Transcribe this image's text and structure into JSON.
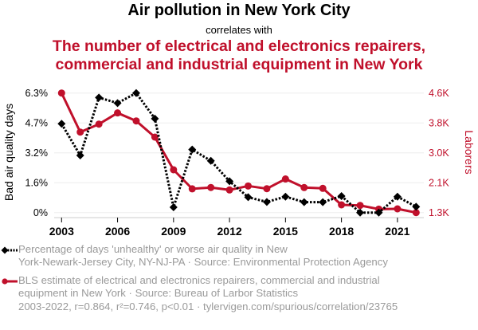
{
  "header": {
    "title": "Air pollution in New York City",
    "subtitle": "correlates with",
    "title2_line1": "The number of electrical and electronics repairers,",
    "title2_line2": "commercial and industrial equipment in New York"
  },
  "colors": {
    "series1": "#000000",
    "series2": "#c0102b",
    "muted_text": "#9a9a9a",
    "grid": "#eeeeee"
  },
  "legend": {
    "series1_line1": "Percentage of days 'unhealthy' or worse air quality in New",
    "series1_line2": "York-Newark-Jersey City, NY-NJ-PA · Source: Environmental Protection Agency",
    "series2_line1": "BLS estimate of electrical and electronics repairers, commercial and industrial",
    "series2_line2": "equipment in New York · Source: Bureau of Larbor Statistics"
  },
  "footer": "2003-2022, r=0.864, r²=0.746, p<0.01 · tylervigen.com/spurious/correlation/23765",
  "chart_data": {
    "type": "line",
    "title": "Air pollution in New York City",
    "x": [
      2003,
      2004,
      2005,
      2006,
      2007,
      2008,
      2009,
      2010,
      2011,
      2012,
      2013,
      2014,
      2015,
      2016,
      2017,
      2018,
      2019,
      2020,
      2021,
      2022
    ],
    "xticks": [
      "2003",
      "2006",
      "2009",
      "2012",
      "2015",
      "2018",
      "2021"
    ],
    "xtick_values": [
      2003,
      2006,
      2009,
      2012,
      2015,
      2018,
      2021
    ],
    "xlim": [
      2003,
      2022
    ],
    "grid": true,
    "series": [
      {
        "name": "Percentage of days 'unhealthy' or worse air quality in New York-Newark-Jersey City, NY-NJ-PA",
        "axis": "left",
        "style": "dotted",
        "marker": "diamond",
        "values": [
          4.68,
          3.01,
          6.06,
          5.77,
          6.3,
          4.95,
          0.28,
          3.32,
          2.73,
          1.65,
          0.81,
          0.56,
          0.84,
          0.55,
          0.55,
          0.87,
          0.0,
          0.0,
          0.84,
          0.31
        ]
      },
      {
        "name": "BLS estimate of electrical and electronics repairers, commercial and industrial equipment in New York",
        "axis": "right",
        "style": "solid",
        "marker": "circle",
        "values": [
          4600,
          3525,
          3744,
          4052,
          3832,
          3387,
          2488,
          1964,
          2000,
          1933,
          2042,
          1968,
          2235,
          1999,
          1977,
          1523,
          1507,
          1406,
          1413,
          1310
        ]
      }
    ],
    "left_axis": {
      "label": "Bad air quality days",
      "ylim": [
        0,
        6.3
      ],
      "ticks": [
        0,
        1.575,
        3.15,
        4.725,
        6.3
      ],
      "tick_labels": [
        "0%",
        "1.6%",
        "3.2%",
        "4.7%",
        "6.3%"
      ]
    },
    "right_axis": {
      "label": "Laborers",
      "ylim": [
        1310,
        4600
      ],
      "ticks": [
        1310,
        2132.5,
        2955,
        3777.5,
        4600
      ],
      "tick_labels": [
        "1.3K",
        "2.1K",
        "3.0K",
        "3.8K",
        "4.6K"
      ]
    },
    "legend_position": "bottom"
  }
}
